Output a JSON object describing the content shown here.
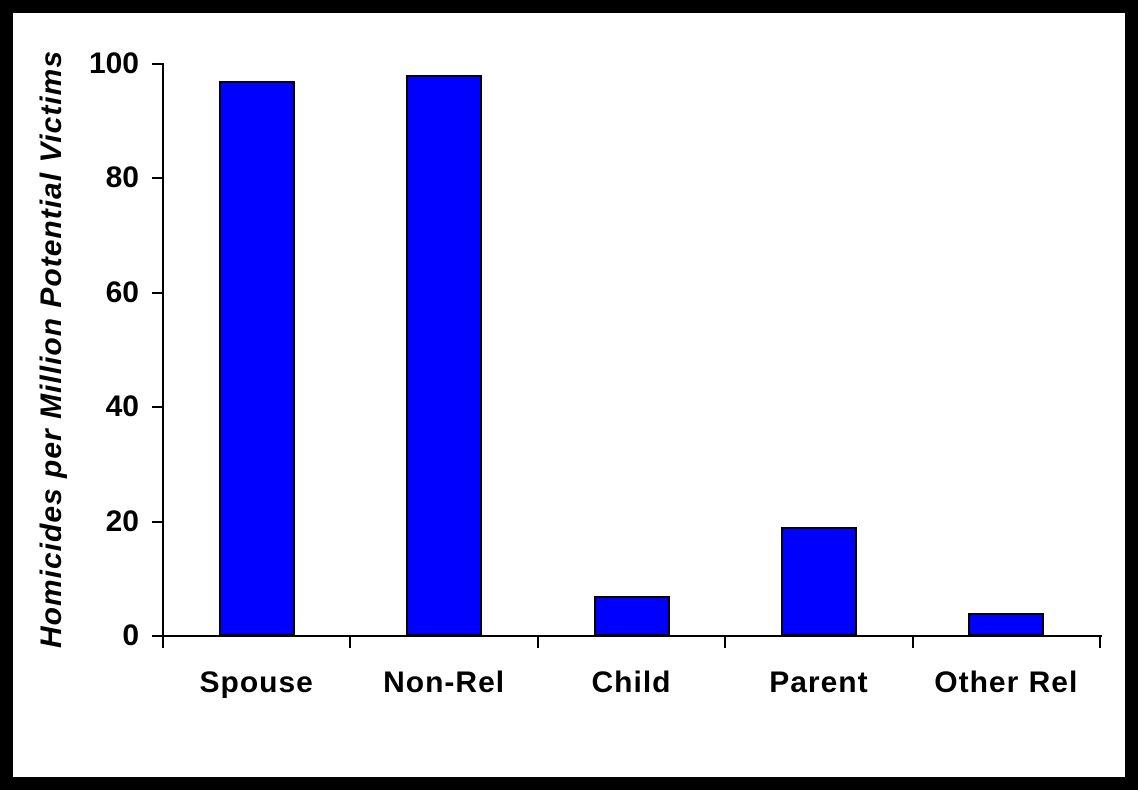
{
  "colors": {
    "frame": "#000000",
    "background": "#FFFFFF",
    "bar_fill": "#0000FF",
    "bar_border": "#000000",
    "axis": "#000000",
    "text": "#000000"
  },
  "chart_data": {
    "type": "bar",
    "title": "",
    "xlabel": "",
    "ylabel": "Homicides per Million Potential Victims",
    "categories": [
      "Spouse",
      "Non-Rel",
      "Child",
      "Parent",
      "Other Rel"
    ],
    "values": [
      97,
      98,
      7,
      19,
      4
    ],
    "ylim": [
      0,
      100
    ],
    "yticks": [
      0,
      20,
      40,
      60,
      80,
      100
    ],
    "grid": false,
    "legend": false,
    "bar_color": "#0000FF"
  }
}
